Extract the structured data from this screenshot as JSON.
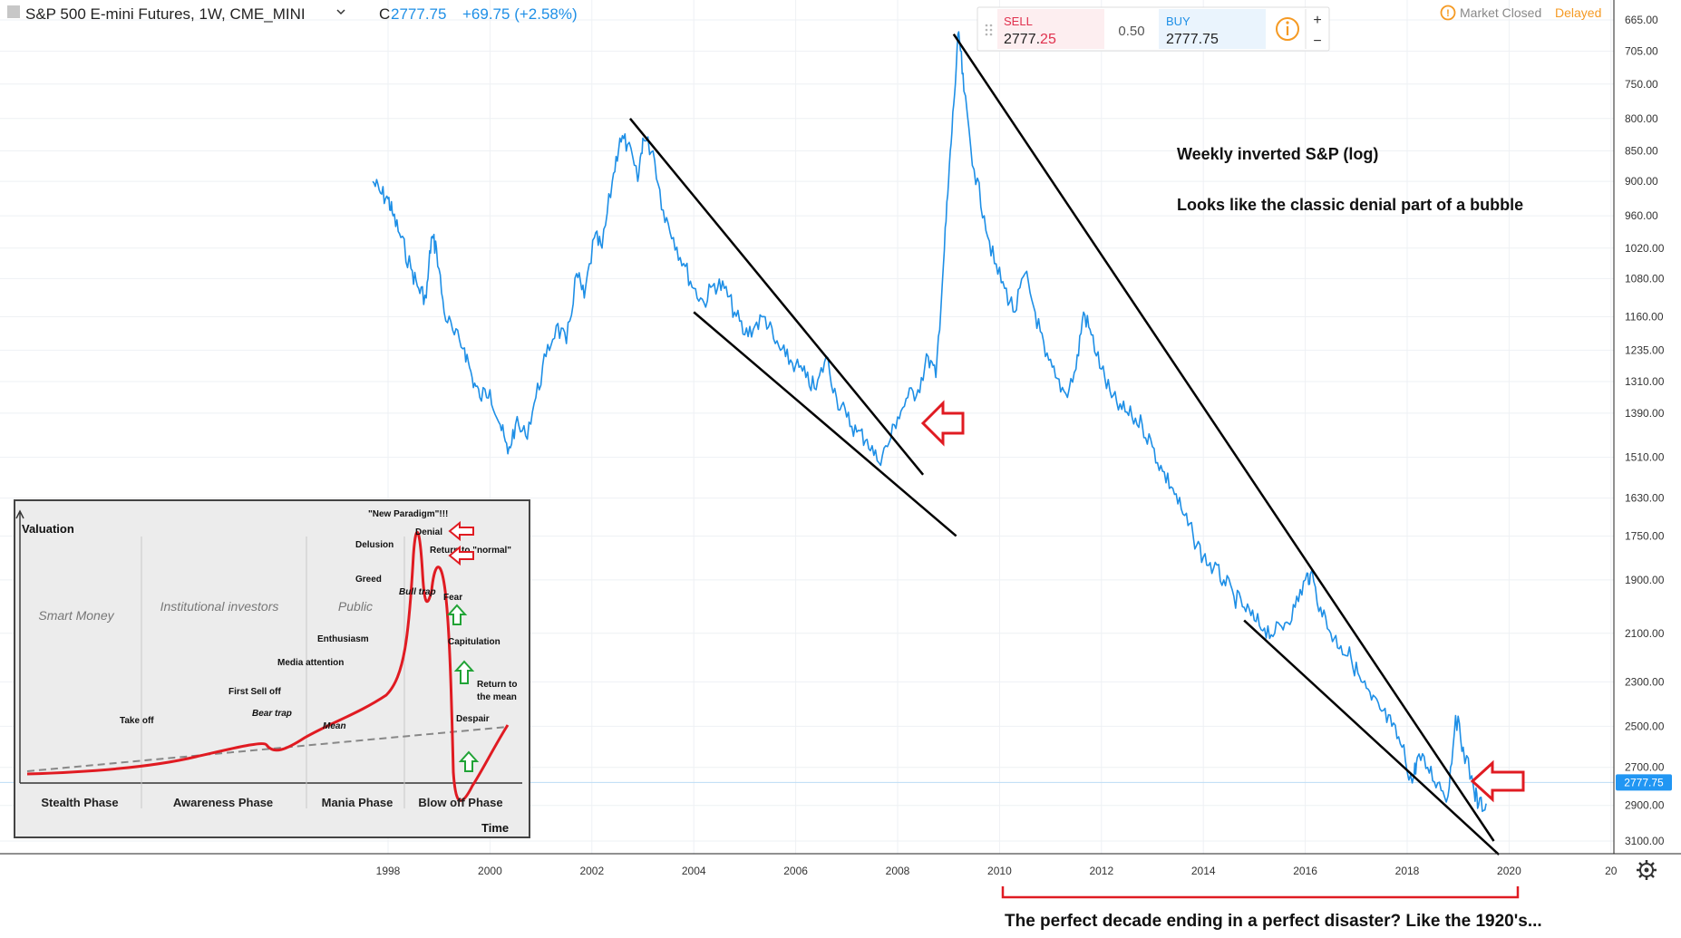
{
  "header": {
    "symbol_title": "S&P 500 E-mini Futures, 1W, CME_MINI",
    "close_prefix": "C",
    "close_value": "2777.75",
    "change": "+69.75 (+2.58%)"
  },
  "trade_panel": {
    "sell_label": "SELL",
    "sell_price_main": "2777.",
    "sell_price_tail": "25",
    "spread": "0.50",
    "buy_label": "BUY",
    "buy_price": "2777.75",
    "zoom_in": "+",
    "zoom_out": "−",
    "info_icon": "info-circle-icon"
  },
  "market_status": {
    "label": "Market Closed",
    "delayed": "Delayed",
    "icon": "clock-warning-icon"
  },
  "annotations": {
    "note_title": "Weekly inverted S&P (log)",
    "note_body": "Looks like the classic denial part of a bubble",
    "bottom_caption": "The perfect decade ending in a perfect disaster? Like the 1920's..."
  },
  "settings_icon": "gear-icon",
  "colors": {
    "series": "#1e8fe6",
    "sell": "#e0304d",
    "arrow_red": "#e01b22",
    "arrow_green": "#21a336",
    "delayed": "#f59a23",
    "price_badge": "#2196f3"
  },
  "chart_data": {
    "type": "line",
    "title": "S&P 500 E-mini Futures, 1W, CME_MINI",
    "subtitle": "Weekly inverted S&P (log)",
    "y_scale": "log, inverted",
    "ylim": [
      3100,
      665
    ],
    "y_ticks": [
      "665.00",
      "705.00",
      "750.00",
      "800.00",
      "850.00",
      "900.00",
      "960.00",
      "1020.00",
      "1080.00",
      "1160.00",
      "1235.00",
      "1310.00",
      "1390.00",
      "1510.00",
      "1630.00",
      "1750.00",
      "1900.00",
      "2100.00",
      "2300.00",
      "2500.00",
      "2700.00",
      "2900.00",
      "3100.00"
    ],
    "x_ticks": [
      "1998",
      "2000",
      "2002",
      "2004",
      "2006",
      "2008",
      "2010",
      "2012",
      "2014",
      "2016",
      "2018",
      "2020",
      "20"
    ],
    "last_price": "2777.75",
    "series": [
      {
        "values": [
          [
            1997.7,
            900
          ],
          [
            1997.85,
            920
          ],
          [
            1998.0,
            930
          ],
          [
            1998.1,
            960
          ],
          [
            1998.25,
            1000
          ],
          [
            1998.45,
            1060
          ],
          [
            1998.6,
            1100
          ],
          [
            1998.75,
            1120
          ],
          [
            1998.85,
            1000
          ],
          [
            1998.95,
            1020
          ],
          [
            1999.1,
            1150
          ],
          [
            1999.3,
            1200
          ],
          [
            1999.5,
            1230
          ],
          [
            1999.65,
            1300
          ],
          [
            1999.8,
            1350
          ],
          [
            2000.0,
            1330
          ],
          [
            2000.2,
            1420
          ],
          [
            2000.35,
            1500
          ],
          [
            2000.5,
            1420
          ],
          [
            2000.7,
            1450
          ],
          [
            2000.9,
            1350
          ],
          [
            2001.1,
            1250
          ],
          [
            2001.3,
            1180
          ],
          [
            2001.5,
            1220
          ],
          [
            2001.7,
            1070
          ],
          [
            2001.85,
            1120
          ],
          [
            2002.05,
            1000
          ],
          [
            2002.2,
            1020
          ],
          [
            2002.4,
            900
          ],
          [
            2002.55,
            830
          ],
          [
            2002.7,
            840
          ],
          [
            2002.9,
            900
          ],
          [
            2003.0,
            830
          ],
          [
            2003.2,
            850
          ],
          [
            2003.4,
            950
          ],
          [
            2003.6,
            1000
          ],
          [
            2003.8,
            1050
          ],
          [
            2004.0,
            1100
          ],
          [
            2004.2,
            1130
          ],
          [
            2004.4,
            1090
          ],
          [
            2004.6,
            1100
          ],
          [
            2004.8,
            1150
          ],
          [
            2005.0,
            1200
          ],
          [
            2005.2,
            1180
          ],
          [
            2005.4,
            1160
          ],
          [
            2005.6,
            1220
          ],
          [
            2005.8,
            1250
          ],
          [
            2006.0,
            1270
          ],
          [
            2006.2,
            1300
          ],
          [
            2006.4,
            1330
          ],
          [
            2006.6,
            1250
          ],
          [
            2006.8,
            1350
          ],
          [
            2007.0,
            1400
          ],
          [
            2007.2,
            1440
          ],
          [
            2007.4,
            1460
          ],
          [
            2007.6,
            1520
          ],
          [
            2007.8,
            1480
          ],
          [
            2008.0,
            1400
          ],
          [
            2008.2,
            1350
          ],
          [
            2008.4,
            1330
          ],
          [
            2008.6,
            1250
          ],
          [
            2008.75,
            1300
          ],
          [
            2008.9,
            1050
          ],
          [
            2009.0,
            900
          ],
          [
            2009.1,
            780
          ],
          [
            2009.2,
            680
          ],
          [
            2009.3,
            760
          ],
          [
            2009.5,
            880
          ],
          [
            2009.7,
            960
          ],
          [
            2009.9,
            1050
          ],
          [
            2010.1,
            1100
          ],
          [
            2010.3,
            1150
          ],
          [
            2010.5,
            1070
          ],
          [
            2010.7,
            1150
          ],
          [
            2010.9,
            1250
          ],
          [
            2011.1,
            1300
          ],
          [
            2011.3,
            1340
          ],
          [
            2011.5,
            1280
          ],
          [
            2011.65,
            1150
          ],
          [
            2011.8,
            1200
          ],
          [
            2012.0,
            1280
          ],
          [
            2012.2,
            1350
          ],
          [
            2012.4,
            1380
          ],
          [
            2012.6,
            1400
          ],
          [
            2012.8,
            1420
          ],
          [
            2013.0,
            1480
          ],
          [
            2013.2,
            1550
          ],
          [
            2013.4,
            1600
          ],
          [
            2013.6,
            1680
          ],
          [
            2013.8,
            1750
          ],
          [
            2014.0,
            1820
          ],
          [
            2014.2,
            1860
          ],
          [
            2014.4,
            1900
          ],
          [
            2014.6,
            1960
          ],
          [
            2014.8,
            2000
          ],
          [
            2015.0,
            2050
          ],
          [
            2015.2,
            2080
          ],
          [
            2015.4,
            2100
          ],
          [
            2015.6,
            2060
          ],
          [
            2015.8,
            2000
          ],
          [
            2016.0,
            1900
          ],
          [
            2016.1,
            1880
          ],
          [
            2016.3,
            2000
          ],
          [
            2016.5,
            2100
          ],
          [
            2016.7,
            2150
          ],
          [
            2016.9,
            2200
          ],
          [
            2017.1,
            2300
          ],
          [
            2017.3,
            2380
          ],
          [
            2017.5,
            2430
          ],
          [
            2017.7,
            2500
          ],
          [
            2017.9,
            2600
          ],
          [
            2018.1,
            2780
          ],
          [
            2018.2,
            2650
          ],
          [
            2018.4,
            2700
          ],
          [
            2018.6,
            2780
          ],
          [
            2018.8,
            2850
          ],
          [
            2018.95,
            2450
          ],
          [
            2019.1,
            2600
          ],
          [
            2019.3,
            2800
          ],
          [
            2019.4,
            2900
          ],
          [
            2019.55,
            2890
          ]
        ]
      }
    ],
    "trend_lines": [
      {
        "from": [
          2002.75,
          800
        ],
        "to": [
          2008.5,
          1560
        ]
      },
      {
        "from": [
          2004.0,
          1150
        ],
        "to": [
          2009.15,
          1750
        ]
      },
      {
        "from": [
          2009.1,
          683
        ],
        "to": [
          2019.7,
          3100
        ]
      },
      {
        "from": [
          2014.8,
          2050
        ],
        "to": [
          2019.8,
          3180
        ]
      }
    ]
  },
  "inset": {
    "y_axis_label": "Valuation",
    "x_axis_label": "Time",
    "groups": [
      "Smart Money",
      "Institutional investors",
      "Public"
    ],
    "phases": [
      "Stealth Phase",
      "Awareness Phase",
      "Mania Phase",
      "Blow off Phase"
    ],
    "labels": {
      "new_paradigm": "\"New Paradigm\"!!!",
      "denial": "Denial",
      "delusion": "Delusion",
      "return_normal": "Return to \"normal\"",
      "greed": "Greed",
      "bull_trap": "Bull trap",
      "fear": "Fear",
      "public": "Public",
      "enthusiasm": "Enthusiasm",
      "capitulation": "Capitulation",
      "media_attention": "Media attention",
      "first_sell_off": "First Sell off",
      "return_to": "Return to",
      "the_mean": "the mean",
      "take_off": "Take off",
      "bear_trap": "Bear trap",
      "despair": "Despair",
      "mean": "Mean"
    }
  }
}
